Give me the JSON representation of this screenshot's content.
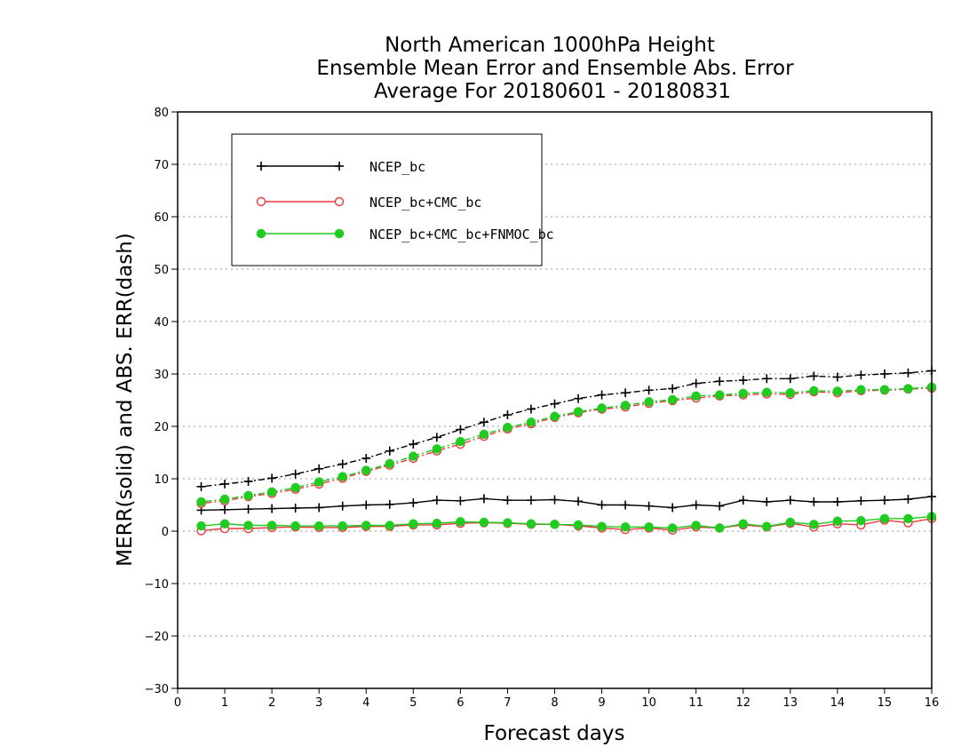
{
  "chart_data": {
    "type": "line",
    "title": [
      "North American 1000hPa Height",
      "Ensemble Mean Error and Ensemble Abs. Error",
      "Average For 20180601 - 20180831"
    ],
    "xlabel": "Forecast days",
    "ylabel": "MERR(solid) and ABS. ERR(dash)",
    "xlim": [
      0,
      16
    ],
    "ylim": [
      -30,
      80
    ],
    "xticks": [
      "0",
      "1",
      "2",
      "3",
      "4",
      "5",
      "6",
      "7",
      "8",
      "9",
      "10",
      "11",
      "12",
      "13",
      "14",
      "15",
      "16"
    ],
    "yticks": [
      "80",
      "70",
      "60",
      "50",
      "40",
      "30",
      "20",
      "10",
      "0",
      "−10",
      "−20",
      "−30"
    ],
    "grid": "horizontal dotted",
    "legend_placement": "top-left",
    "x": [
      0.5,
      1,
      1.5,
      2,
      2.5,
      3,
      3.5,
      4,
      4.5,
      5,
      5.5,
      6,
      6.5,
      7,
      7.5,
      8,
      8.5,
      9,
      9.5,
      10,
      10.5,
      11,
      11.5,
      12,
      12.5,
      13,
      13.5,
      14,
      14.5,
      15,
      15.5,
      16
    ],
    "series": [
      {
        "name": "NCEP_bc",
        "color": "#000000",
        "marker": "plus",
        "merr": [
          4.0,
          4.1,
          4.2,
          4.3,
          4.4,
          4.5,
          4.8,
          5.0,
          5.1,
          5.4,
          5.9,
          5.8,
          6.2,
          5.9,
          5.9,
          6.0,
          5.7,
          5.0,
          5.0,
          4.8,
          4.5,
          5.0,
          4.8,
          5.9,
          5.6,
          5.9,
          5.6,
          5.6,
          5.8,
          5.9,
          6.1,
          6.6
        ],
        "abserr": [
          8.5,
          9.0,
          9.5,
          10.1,
          10.9,
          11.9,
          12.8,
          13.9,
          15.3,
          16.6,
          17.9,
          19.4,
          20.8,
          22.2,
          23.3,
          24.3,
          25.3,
          26.0,
          26.4,
          26.9,
          27.2,
          28.2,
          28.6,
          28.8,
          29.1,
          29.1,
          29.6,
          29.4,
          29.8,
          30.0,
          30.2,
          30.6
        ]
      },
      {
        "name": "NCEP_bc+CMC_bc",
        "color": "#e8393f",
        "marker": "open-circle",
        "merr": [
          0.1,
          0.5,
          0.5,
          0.7,
          0.8,
          0.7,
          0.7,
          0.9,
          0.9,
          1.2,
          1.2,
          1.5,
          1.6,
          1.5,
          1.3,
          1.3,
          1.0,
          0.6,
          0.3,
          0.6,
          0.2,
          0.8,
          0.6,
          1.2,
          0.8,
          1.5,
          0.8,
          1.4,
          1.2,
          2.1,
          1.6,
          2.4
        ],
        "abserr": [
          5.3,
          5.8,
          6.6,
          7.2,
          8.0,
          9.0,
          10.1,
          11.4,
          12.6,
          13.9,
          15.3,
          16.6,
          18.1,
          19.5,
          20.5,
          21.7,
          22.6,
          23.3,
          23.7,
          24.4,
          24.9,
          25.4,
          25.8,
          26.0,
          26.2,
          26.1,
          26.6,
          26.4,
          26.8,
          26.9,
          27.1,
          27.3
        ]
      },
      {
        "name": "NCEP_bc+CMC_bc+FNMOC_bc",
        "color": "#1fcc1f",
        "marker": "filled-circle",
        "merr": [
          1.0,
          1.4,
          1.1,
          1.1,
          1.0,
          1.0,
          1.0,
          1.1,
          1.1,
          1.4,
          1.5,
          1.8,
          1.7,
          1.6,
          1.4,
          1.3,
          1.2,
          0.9,
          0.8,
          0.8,
          0.6,
          1.1,
          0.6,
          1.4,
          0.9,
          1.7,
          1.3,
          1.9,
          2.0,
          2.4,
          2.4,
          2.8
        ],
        "abserr": [
          5.6,
          6.1,
          6.8,
          7.5,
          8.3,
          9.4,
          10.4,
          11.6,
          12.9,
          14.3,
          15.7,
          17.1,
          18.5,
          19.8,
          20.8,
          21.9,
          22.8,
          23.5,
          24.0,
          24.7,
          25.1,
          25.8,
          26.0,
          26.3,
          26.5,
          26.4,
          26.8,
          26.7,
          27.0,
          27.0,
          27.2,
          27.5
        ]
      }
    ]
  }
}
